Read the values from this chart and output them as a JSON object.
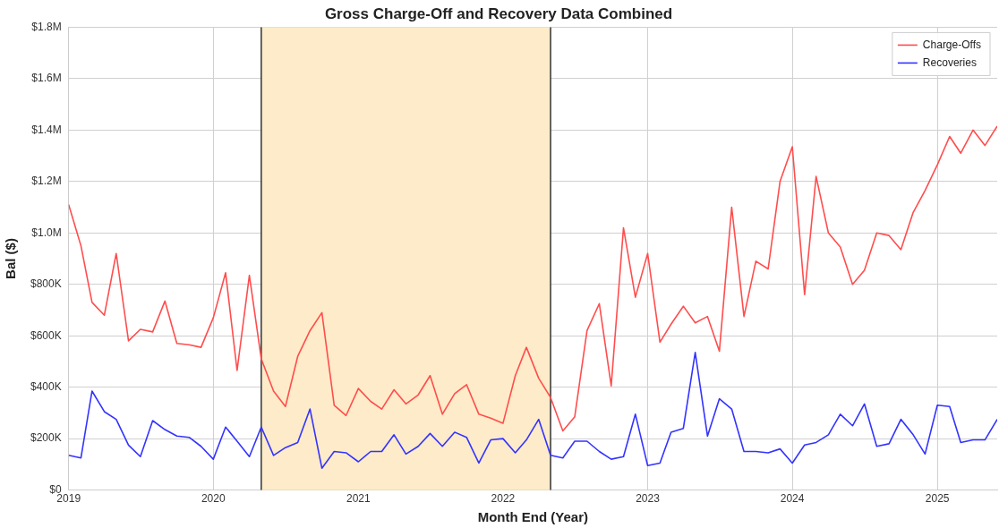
{
  "chart_data": {
    "type": "line",
    "title": "Gross Charge-Off and Recovery Data Combined",
    "xlabel": "Month End (Year)",
    "ylabel": "Bal ($)",
    "x": [
      "2019-01",
      "2019-02",
      "2019-03",
      "2019-04",
      "2019-05",
      "2019-06",
      "2019-07",
      "2019-08",
      "2019-09",
      "2019-10",
      "2019-11",
      "2019-12",
      "2020-01",
      "2020-02",
      "2020-03",
      "2020-04",
      "2020-05",
      "2020-06",
      "2020-07",
      "2020-08",
      "2020-09",
      "2020-10",
      "2020-11",
      "2020-12",
      "2021-01",
      "2021-02",
      "2021-03",
      "2021-04",
      "2021-05",
      "2021-06",
      "2021-07",
      "2021-08",
      "2021-09",
      "2021-10",
      "2021-11",
      "2021-12",
      "2022-01",
      "2022-02",
      "2022-03",
      "2022-04",
      "2022-05",
      "2022-06",
      "2022-07",
      "2022-08",
      "2022-09",
      "2022-10",
      "2022-11",
      "2022-12",
      "2023-01",
      "2023-02",
      "2023-03",
      "2023-04",
      "2023-05",
      "2023-06",
      "2023-07",
      "2023-08",
      "2023-09",
      "2023-10",
      "2023-11",
      "2023-12",
      "2024-01",
      "2024-02",
      "2024-03",
      "2024-04",
      "2024-05",
      "2024-06",
      "2024-07",
      "2024-08",
      "2024-09",
      "2024-10",
      "2024-11",
      "2024-12",
      "2025-01",
      "2025-02",
      "2025-03",
      "2025-04",
      "2025-05",
      "2025-06"
    ],
    "series": [
      {
        "name": "Charge-Offs",
        "color": "#ff4d4d",
        "values": [
          1110000,
          950000,
          730000,
          680000,
          920000,
          580000,
          625000,
          615000,
          735000,
          570000,
          565000,
          555000,
          670000,
          845000,
          465000,
          835000,
          510000,
          385000,
          325000,
          520000,
          620000,
          690000,
          330000,
          290000,
          395000,
          345000,
          315000,
          390000,
          335000,
          370000,
          445000,
          295000,
          375000,
          410000,
          295000,
          280000,
          260000,
          445000,
          555000,
          435000,
          360000,
          230000,
          285000,
          620000,
          725000,
          405000,
          1020000,
          750000,
          920000,
          575000,
          645000,
          715000,
          650000,
          675000,
          540000,
          1100000,
          675000,
          890000,
          860000,
          1200000,
          1335000,
          760000,
          1220000,
          1000000,
          945000,
          800000,
          855000,
          1000000,
          990000,
          935000,
          1080000,
          1165000,
          1265000,
          1375000,
          1310000,
          1400000,
          1340000,
          1415000
        ]
      },
      {
        "name": "Recoveries",
        "color": "#3333ff",
        "values": [
          135000,
          125000,
          385000,
          305000,
          275000,
          175000,
          130000,
          270000,
          235000,
          210000,
          205000,
          170000,
          120000,
          245000,
          190000,
          130000,
          245000,
          135000,
          165000,
          185000,
          315000,
          85000,
          150000,
          145000,
          110000,
          150000,
          150000,
          215000,
          140000,
          170000,
          220000,
          170000,
          225000,
          205000,
          105000,
          195000,
          200000,
          145000,
          195000,
          275000,
          135000,
          125000,
          190000,
          190000,
          150000,
          120000,
          130000,
          295000,
          95000,
          105000,
          225000,
          240000,
          535000,
          210000,
          355000,
          315000,
          150000,
          150000,
          145000,
          160000,
          105000,
          175000,
          185000,
          215000,
          295000,
          250000,
          335000,
          170000,
          180000,
          275000,
          215000,
          140000,
          330000,
          325000,
          185000,
          195000,
          195000,
          275000
        ]
      }
    ],
    "bands": [
      {
        "axis": "x",
        "from": "2020-05",
        "to": "2022-05",
        "color": "#fdebc9"
      }
    ],
    "ref_lines": [
      {
        "axis": "x",
        "value": "2020-05",
        "color": "#333333"
      },
      {
        "axis": "x",
        "value": "2022-05",
        "color": "#333333"
      }
    ],
    "xlim": [
      "2019-01",
      "2025-06"
    ],
    "xticks": [
      "2019",
      "2020",
      "2021",
      "2022",
      "2023",
      "2024",
      "2025"
    ],
    "ylim": [
      0,
      1800000
    ],
    "yticks": [
      {
        "value": 0,
        "label": "$0"
      },
      {
        "value": 200000,
        "label": "$200K"
      },
      {
        "value": 400000,
        "label": "$400K"
      },
      {
        "value": 600000,
        "label": "$600K"
      },
      {
        "value": 800000,
        "label": "$800K"
      },
      {
        "value": 1000000,
        "label": "$1.0M"
      },
      {
        "value": 1200000,
        "label": "$1.2M"
      },
      {
        "value": 1400000,
        "label": "$1.4M"
      },
      {
        "value": 1600000,
        "label": "$1.6M"
      },
      {
        "value": 1800000,
        "label": "$1.8M"
      }
    ],
    "grid": true,
    "legend": "top right",
    "marker": "none",
    "line_style": "solid"
  }
}
